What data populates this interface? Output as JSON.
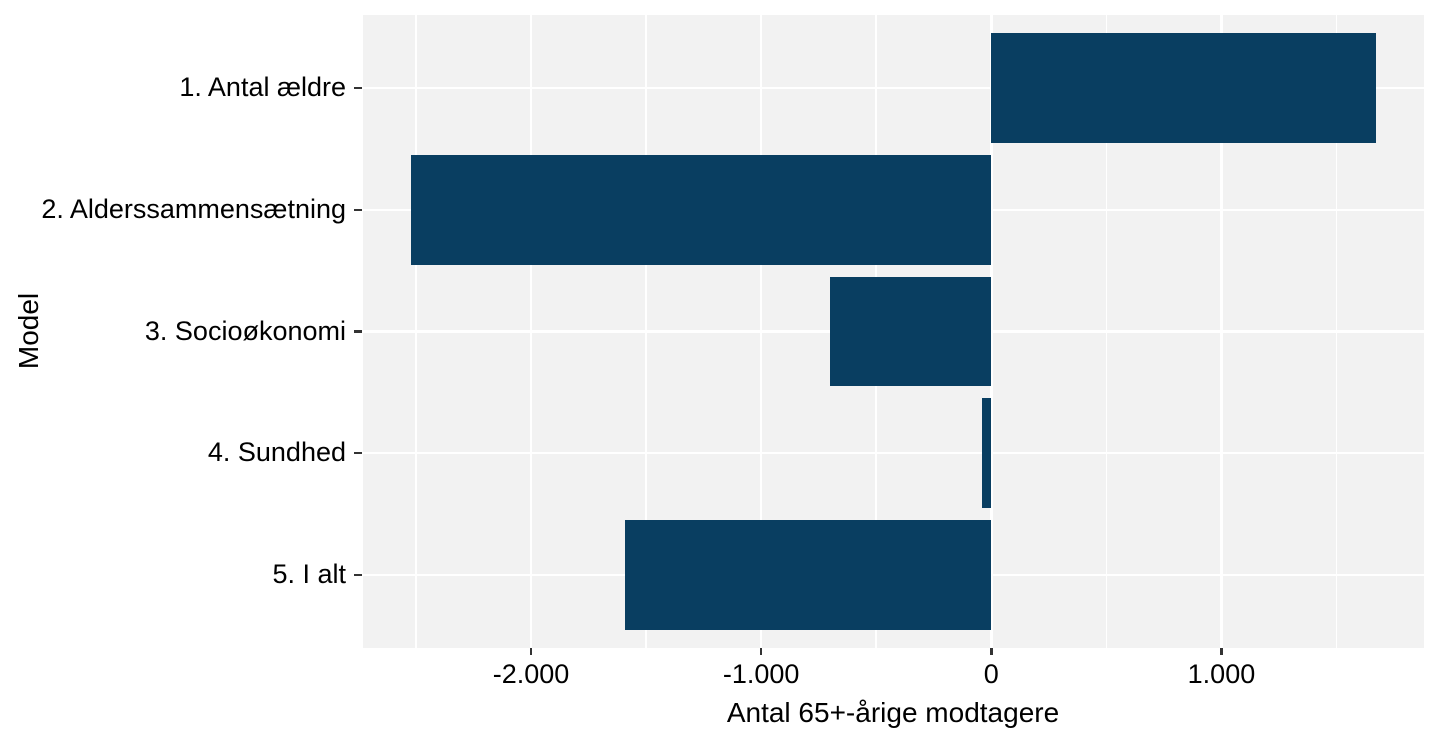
{
  "chart_data": {
    "type": "bar",
    "orientation": "horizontal",
    "title": "",
    "xlabel": "Antal 65+-årige modtagere",
    "ylabel": "Model",
    "categories": [
      "1. Antal ældre",
      "2. Alderssammensætning",
      "3. Socioøkonomi",
      "4. Sundhed",
      "5. I alt"
    ],
    "values": [
      1670,
      -2520,
      -700,
      -40,
      -1590
    ],
    "xlim": [
      -2730,
      1880
    ],
    "x_major_ticks": [
      -2000,
      -1000,
      0,
      1000
    ],
    "x_tick_labels": [
      "-2.000",
      "-1.000",
      "0",
      "1.000"
    ],
    "x_minor_gridlines": [
      -2500,
      -1500,
      -500,
      500,
      1500
    ],
    "bar_width_fraction": 0.9,
    "grid": "major and minor vertical, major horizontal; white lines on gray panel",
    "legend_position": "none",
    "colors": {
      "bar_fill": "#093e61",
      "panel_background": "#f2f2f2",
      "gridline": "#ffffff",
      "tick_mark": "#333333",
      "text": "#000000",
      "figure_background": "#ffffff"
    }
  }
}
